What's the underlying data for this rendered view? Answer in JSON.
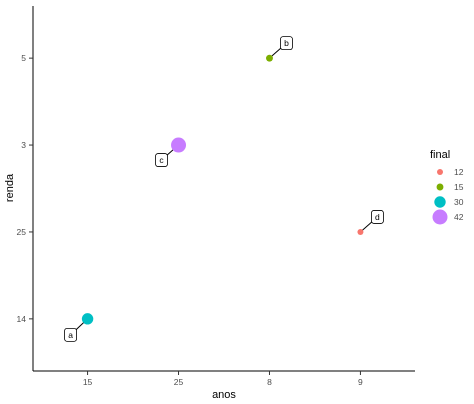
{
  "chart_data": {
    "type": "scatter",
    "xlabel": "anos",
    "ylabel": "renda",
    "x_categories": [
      "15",
      "25",
      "8",
      "9"
    ],
    "y_categories": [
      "14",
      "25",
      "3",
      "5"
    ],
    "points": [
      {
        "x": "15",
        "y": "14",
        "final": 30,
        "label": "a"
      },
      {
        "x": "8",
        "y": "5",
        "final": 15,
        "label": "b"
      },
      {
        "x": "25",
        "y": "3",
        "final": 42,
        "label": "c"
      },
      {
        "x": "9",
        "y": "25",
        "final": 12,
        "label": "d"
      }
    ],
    "legend": {
      "title": "final",
      "placement": "right",
      "entries": [
        {
          "label": "12",
          "color": "#F8766D",
          "value": 12
        },
        {
          "label": "15",
          "color": "#7CAE00",
          "value": 15
        },
        {
          "label": "30",
          "color": "#00BFC4",
          "value": 30
        },
        {
          "label": "42",
          "color": "#C77CFF",
          "value": 42
        }
      ]
    },
    "grid": false
  }
}
